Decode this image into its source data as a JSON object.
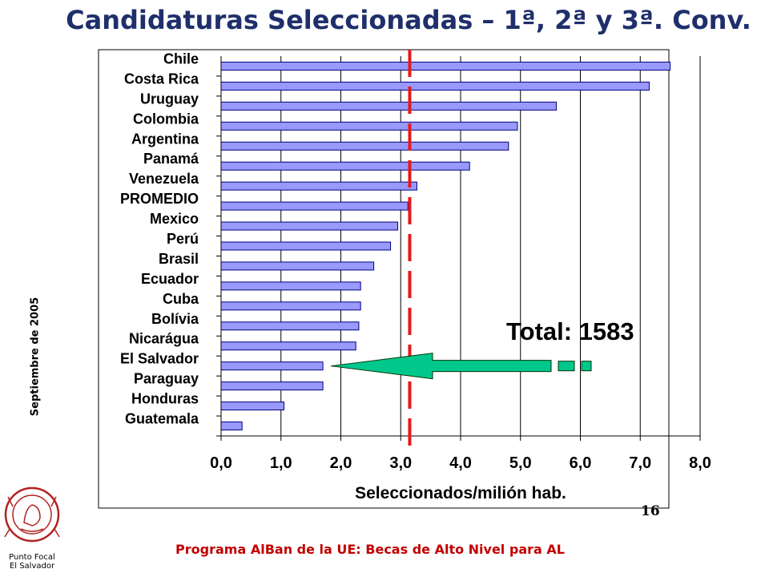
{
  "title": "Candidaturas Seleccionadas – 1ª, 2ª y 3ª. Conv.",
  "side_label": "Septiembre de 2005",
  "footer": "Programa AlBan de la UE: Becas de Alto Nivel para AL",
  "page_number": "16",
  "logo": {
    "icon": "university-seal-icon",
    "caption_line1": "Punto Focal",
    "caption_line2": "El Salvador"
  },
  "colors": {
    "bar_fill": "#9999ff",
    "bar_stroke": "#000080",
    "title": "#1f2f6b",
    "footer": "#c00000",
    "average_line": "#e41a1c",
    "arrow": "#00c78c"
  },
  "chart_data": {
    "type": "bar",
    "orientation": "horizontal",
    "xlabel": "Seleccionados/milión hab.",
    "xlim": [
      0,
      8
    ],
    "xticks": [
      "0,0",
      "1,0",
      "2,0",
      "3,0",
      "4,0",
      "5,0",
      "6,0",
      "7,0",
      "8,0"
    ],
    "grid": "vertical",
    "categories": [
      "Chile",
      "Costa Rica",
      "Uruguay",
      "Colombia",
      "Argentina",
      "Panamá",
      "Venezuela",
      "PROMEDIO",
      "Mexico",
      "Perú",
      "Brasil",
      "Ecuador",
      "Cuba",
      "Bolívia",
      "Nicarágua",
      "El Salvador",
      "Paraguay",
      "Honduras",
      "Guatemala"
    ],
    "values": [
      7.5,
      7.15,
      5.6,
      4.95,
      4.8,
      4.15,
      3.27,
      3.12,
      2.95,
      2.83,
      2.55,
      2.33,
      2.33,
      2.3,
      2.25,
      1.7,
      1.7,
      1.05,
      0.35
    ],
    "reference_line": {
      "x": 3.15
    },
    "annotation": "Total: 1583",
    "highlight": "El Salvador"
  }
}
